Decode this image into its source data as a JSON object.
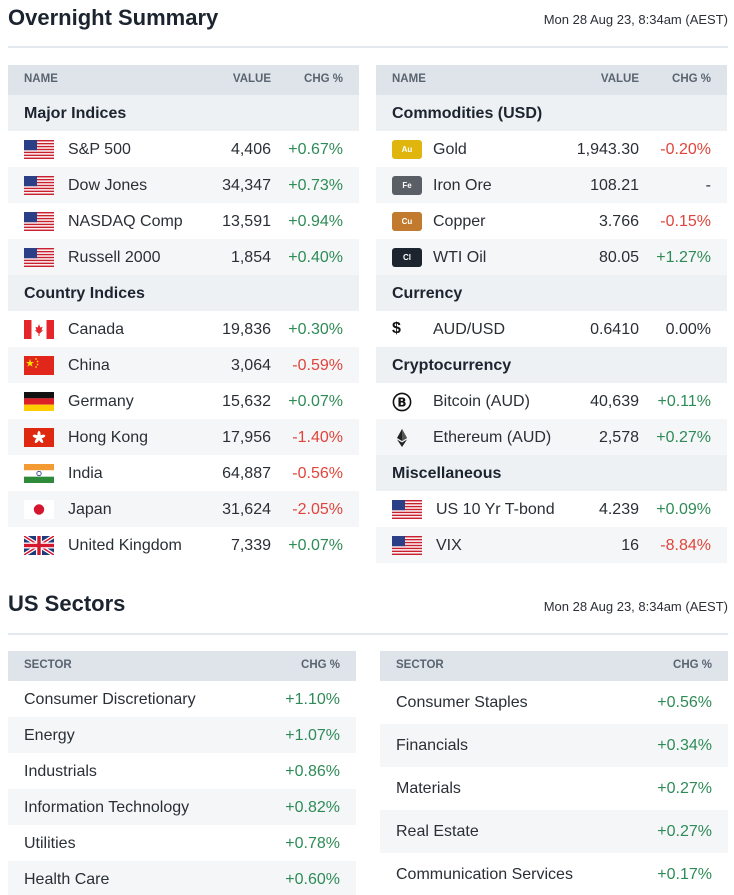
{
  "overnight": {
    "title": "Overnight Summary",
    "timestamp": "Mon 28 Aug 23, 8:34am (AEST)"
  },
  "left_table": {
    "headers": {
      "name": "NAME",
      "value": "VALUE",
      "chg": "CHG %"
    },
    "groups": [
      {
        "label": "Major Indices",
        "rows": [
          {
            "icon": "us-flag-icon",
            "name": "S&P 500",
            "value": "4,406",
            "chg": "+0.67%",
            "dir": "pos"
          },
          {
            "icon": "us-flag-icon",
            "name": "Dow Jones",
            "value": "34,347",
            "chg": "+0.73%",
            "dir": "pos"
          },
          {
            "icon": "us-flag-icon",
            "name": "NASDAQ Comp",
            "value": "13,591",
            "chg": "+0.94%",
            "dir": "pos"
          },
          {
            "icon": "us-flag-icon",
            "name": "Russell 2000",
            "value": "1,854",
            "chg": "+0.40%",
            "dir": "pos"
          }
        ]
      },
      {
        "label": "Country Indices",
        "rows": [
          {
            "icon": "canada-flag-icon",
            "name": "Canada",
            "value": "19,836",
            "chg": "+0.30%",
            "dir": "pos"
          },
          {
            "icon": "china-flag-icon",
            "name": "China",
            "value": "3,064",
            "chg": "-0.59%",
            "dir": "neg"
          },
          {
            "icon": "germany-flag-icon",
            "name": "Germany",
            "value": "15,632",
            "chg": "+0.07%",
            "dir": "pos"
          },
          {
            "icon": "hong-kong-flag-icon",
            "name": "Hong Kong",
            "value": "17,956",
            "chg": "-1.40%",
            "dir": "neg"
          },
          {
            "icon": "india-flag-icon",
            "name": "India",
            "value": "64,887",
            "chg": "-0.56%",
            "dir": "neg"
          },
          {
            "icon": "japan-flag-icon",
            "name": "Japan",
            "value": "31,624",
            "chg": "-2.05%",
            "dir": "neg"
          },
          {
            "icon": "uk-flag-icon",
            "name": "United Kingdom",
            "value": "7,339",
            "chg": "+0.07%",
            "dir": "pos"
          }
        ]
      }
    ]
  },
  "right_table": {
    "headers": {
      "name": "NAME",
      "value": "VALUE",
      "chg": "CHG %"
    },
    "groups": [
      {
        "label": "Commodities (USD)",
        "rows": [
          {
            "icon": "gold-icon",
            "badge": "Au",
            "name": "Gold",
            "value": "1,943.30",
            "chg": "-0.20%",
            "dir": "neg"
          },
          {
            "icon": "iron-ore-icon",
            "badge": "Fe",
            "name": "Iron Ore",
            "value": "108.21",
            "chg": "-",
            "dir": "neu"
          },
          {
            "icon": "copper-icon",
            "badge": "Cu",
            "name": "Copper",
            "value": "3.766",
            "chg": "-0.15%",
            "dir": "neg"
          },
          {
            "icon": "oil-icon",
            "badge": "Cl",
            "name": "WTI Oil",
            "value": "80.05",
            "chg": "+1.27%",
            "dir": "pos"
          }
        ]
      },
      {
        "label": "Currency",
        "rows": [
          {
            "icon": "dollar-icon",
            "badge": "$",
            "name": "AUD/USD",
            "value": "0.6410",
            "chg": "0.00%",
            "dir": "neu"
          }
        ]
      },
      {
        "label": "Cryptocurrency",
        "rows": [
          {
            "icon": "bitcoin-icon",
            "name": "Bitcoin (AUD)",
            "value": "40,639",
            "chg": "+0.11%",
            "dir": "pos"
          },
          {
            "icon": "ethereum-icon",
            "name": "Ethereum (AUD)",
            "value": "2,578",
            "chg": "+0.27%",
            "dir": "pos"
          }
        ]
      },
      {
        "label": "Miscellaneous",
        "rows": [
          {
            "icon": "us-flag-icon",
            "name": "US 10 Yr T-bond",
            "value": "4.239",
            "chg": "+0.09%",
            "dir": "pos"
          },
          {
            "icon": "us-flag-icon",
            "name": "VIX",
            "value": "16",
            "chg": "-8.84%",
            "dir": "neg"
          }
        ]
      }
    ]
  },
  "sectors": {
    "title": "US Sectors",
    "timestamp": "Mon 28 Aug 23, 8:34am (AEST)",
    "headers": {
      "sector": "SECTOR",
      "chg": "CHG %"
    },
    "left": [
      {
        "name": "Consumer Discretionary",
        "chg": "+1.10%"
      },
      {
        "name": "Energy",
        "chg": "+1.07%"
      },
      {
        "name": "Industrials",
        "chg": "+0.86%"
      },
      {
        "name": "Information Technology",
        "chg": "+0.82%"
      },
      {
        "name": "Utilities",
        "chg": "+0.78%"
      },
      {
        "name": "Health Care",
        "chg": "+0.60%"
      }
    ],
    "right": [
      {
        "name": "Consumer Staples",
        "chg": "+0.56%"
      },
      {
        "name": "Financials",
        "chg": "+0.34%"
      },
      {
        "name": "Materials",
        "chg": "+0.27%"
      },
      {
        "name": "Real Estate",
        "chg": "+0.27%"
      },
      {
        "name": "Communication Services",
        "chg": "+0.17%"
      }
    ]
  },
  "colors": {
    "positive": "#2e8b57",
    "negative": "#e0443a",
    "header_bg": "#dfe4ea"
  }
}
